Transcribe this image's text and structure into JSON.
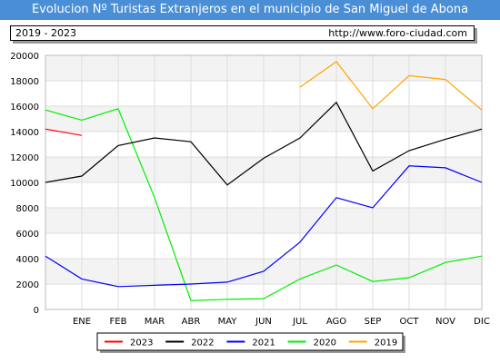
{
  "header": {
    "title": "Evolucion Nº Turistas Extranjeros en el municipio de San Miguel de Abona",
    "range": "2019 - 2023",
    "url": "http://www.foro-ciudad.com"
  },
  "chart_data": {
    "type": "line",
    "title": "Evolucion Nº Turistas Extranjeros en el municipio de San Miguel de Abona",
    "xlabel": "",
    "ylabel": "",
    "categories": [
      "ENE",
      "FEB",
      "MAR",
      "ABR",
      "MAY",
      "JUN",
      "JUL",
      "AGO",
      "SEP",
      "OCT",
      "NOV",
      "DIC"
    ],
    "ylim": [
      0,
      20000
    ],
    "yticks": [
      0,
      2000,
      4000,
      6000,
      8000,
      10000,
      12000,
      14000,
      16000,
      18000,
      20000
    ],
    "grid": true,
    "legend": "bottom",
    "series": [
      {
        "name": "2023",
        "color": "#ff0000",
        "values": [
          13700,
          null,
          null,
          null,
          null,
          null,
          null,
          null,
          null,
          null,
          null,
          null
        ]
      },
      {
        "name": "2022",
        "color": "#000000",
        "values": [
          10500,
          12900,
          13500,
          13200,
          9800,
          11900,
          13500,
          16300,
          10900,
          12500,
          13400,
          14200
        ]
      },
      {
        "name": "2021",
        "color": "#0000ff",
        "values": [
          2400,
          1800,
          1900,
          2000,
          2150,
          3000,
          5300,
          8800,
          8000,
          11300,
          11150,
          10000
        ]
      },
      {
        "name": "2020",
        "color": "#00ee00",
        "values": [
          14900,
          15800,
          8800,
          700,
          800,
          850,
          2400,
          3500,
          2200,
          2500,
          3700,
          4200
        ]
      },
      {
        "name": "2019",
        "color": "#ffa500",
        "values": [
          null,
          null,
          null,
          null,
          null,
          null,
          17500,
          19500,
          15800,
          18400,
          18100,
          15700
        ]
      }
    ],
    "carry_in": {
      "2023": 14200,
      "2022": 10000,
      "2021": 4200,
      "2020": 15700
    }
  }
}
